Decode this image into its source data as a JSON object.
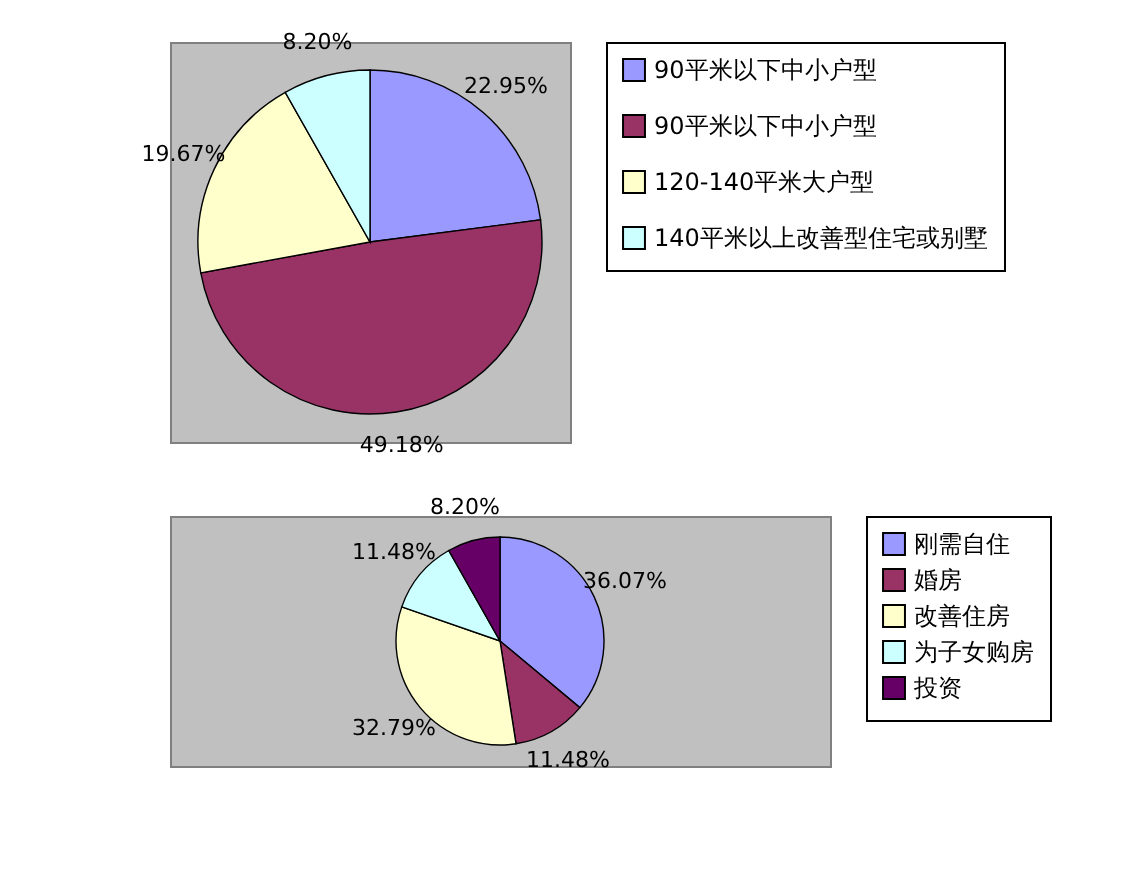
{
  "chart_data": [
    {
      "type": "pie",
      "categories": [
        "90平米以下中小户型",
        "90平米以下中小户型",
        "120-140平米大户型",
        "140平米以上改善型住宅或别墅"
      ],
      "values": [
        22.95,
        49.18,
        19.67,
        8.2
      ],
      "colors": [
        "#9999ff",
        "#993366",
        "#ffffcc",
        "#ccffff"
      ],
      "value_labels": [
        "22.95%",
        "49.18%",
        "19.67%",
        "8.20%"
      ],
      "legend": "right"
    },
    {
      "type": "pie",
      "categories": [
        "刚需自住",
        "婚房",
        "改善住房",
        "为子女购房",
        "投资"
      ],
      "values": [
        36.07,
        11.48,
        32.79,
        11.48,
        8.2
      ],
      "colors": [
        "#9999ff",
        "#993366",
        "#ffffcc",
        "#ccffff",
        "#660066"
      ],
      "value_labels": [
        "36.07%",
        "11.48%",
        "32.79%",
        "11.48%",
        "8.20%"
      ],
      "legend": "right"
    }
  ]
}
